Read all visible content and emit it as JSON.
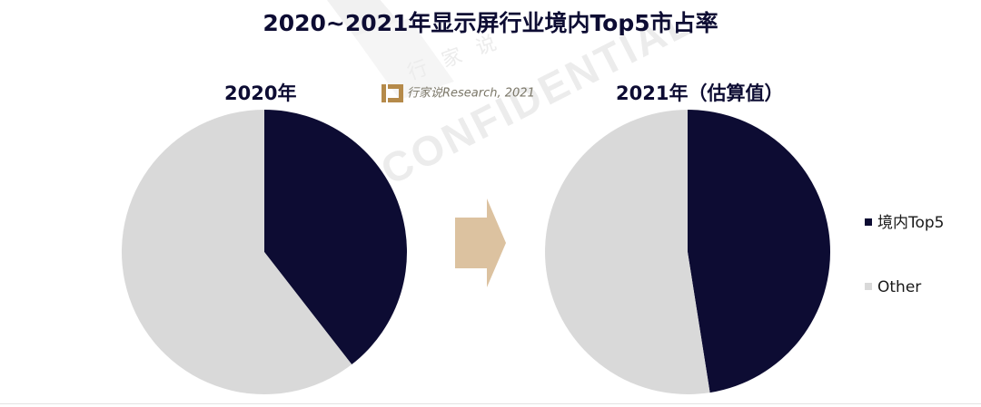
{
  "title": "2020~2021年显示屏行业境内Top5市占率",
  "watermark": {
    "text": "CONFIDENTIAL",
    "cn_text": "行家说",
    "source": "行家说Research, 2021"
  },
  "arrow_color": "#dcc2a0",
  "chart_data": [
    {
      "type": "pie",
      "title": "2020年",
      "labels": [
        "境内Top5",
        "Other"
      ],
      "values": [
        39.5,
        60.5
      ],
      "colors": [
        "#0d0c33",
        "#d9d9d9"
      ]
    },
    {
      "type": "pie",
      "title": "2021年（估算值）",
      "labels": [
        "境内Top5",
        "Other"
      ],
      "values": [
        47.5,
        52.5
      ],
      "colors": [
        "#0d0c33",
        "#d9d9d9"
      ]
    }
  ],
  "legend": [
    {
      "label": "境内Top5",
      "color": "#0d0c33"
    },
    {
      "label": "Other",
      "color": "#d9d9d9"
    }
  ]
}
